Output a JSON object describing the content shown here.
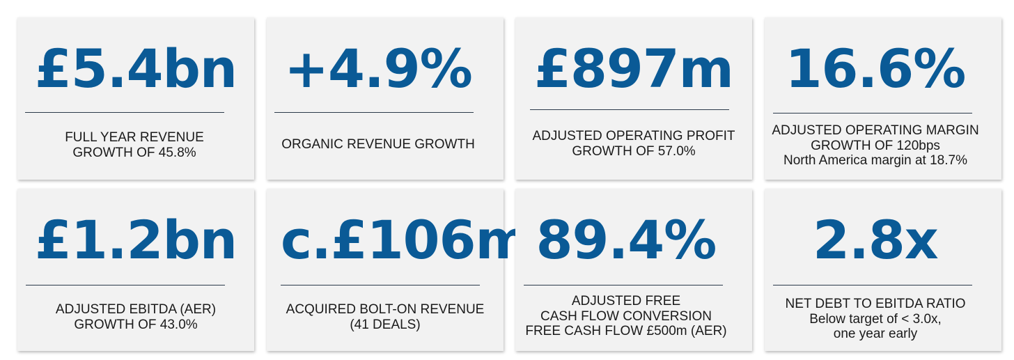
{
  "cards": [
    {
      "value": "£5.4bn",
      "lines": [
        "FULL YEAR REVENUE",
        "GROWTH OF 45.8%"
      ]
    },
    {
      "value": "+4.9%",
      "lines": [
        "ORGANIC REVENUE GROWTH"
      ]
    },
    {
      "value": "£897m",
      "lines": [
        "ADJUSTED OPERATING PROFIT",
        "GROWTH OF 57.0%"
      ]
    },
    {
      "value": "16.6%",
      "lines": [
        "ADJUSTED OPERATING MARGIN",
        "GROWTH OF 120bps",
        "North America margin at 18.7%"
      ]
    },
    {
      "value": "£1.2bn",
      "lines": [
        "ADJUSTED EBITDA (AER)",
        "GROWTH OF 43.0%"
      ]
    },
    {
      "value": "c.£106m",
      "lines": [
        "ACQUIRED BOLT-ON REVENUE",
        "(41 DEALS)"
      ]
    },
    {
      "value": "89.4%",
      "lines": [
        "ADJUSTED FREE",
        "CASH FLOW CONVERSION",
        "FREE CASH FLOW £500m (AER)"
      ]
    },
    {
      "value": "2.8x",
      "lines": [
        "NET DEBT TO EBITDA RATIO",
        "Below target of < 3.0x,",
        "one year early"
      ]
    }
  ],
  "colors": {
    "value_blue": "#0a5a96",
    "card_bg": "#f2f2f2",
    "rule": "#2b3a4a",
    "caption": "#1a1a1a"
  }
}
